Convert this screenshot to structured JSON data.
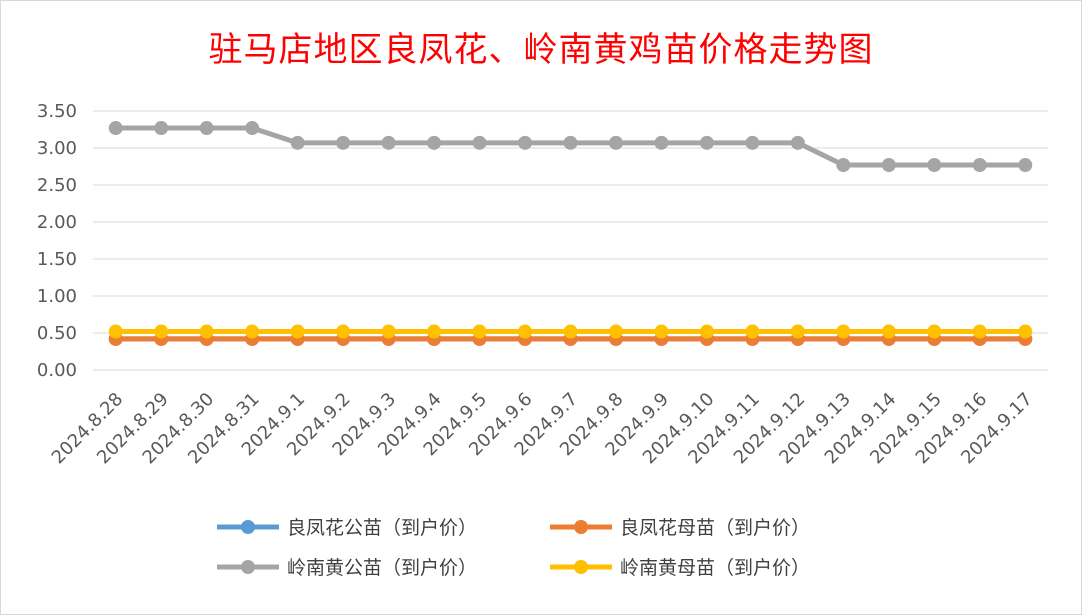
{
  "chart_data": {
    "type": "line",
    "title": "驻马店地区良凤花、岭南黄鸡苗价格走势图",
    "xlabel": "",
    "ylabel": "",
    "ylim": [
      0,
      3.5
    ],
    "yticks": [
      "0.00",
      "0.50",
      "1.00",
      "1.50",
      "2.00",
      "2.50",
      "3.00",
      "3.50"
    ],
    "grid": true,
    "legend_position": "bottom",
    "categories": [
      "2024.8.28",
      "2024.8.29",
      "2024.8.30",
      "2024.8.31",
      "2024.9.1",
      "2024.9.2",
      "2024.9.3",
      "2024.9.4",
      "2024.9.5",
      "2024.9.6",
      "2024.9.7",
      "2024.9.8",
      "2024.9.9",
      "2024.9.10",
      "2024.9.11",
      "2024.9.12",
      "2024.9.13",
      "2024.9.14",
      "2024.9.15",
      "2024.9.16",
      "2024.9.17"
    ],
    "series": [
      {
        "name": "良凤花公苗（到户价）",
        "color": "#5b9bd5",
        "values": [
          0.42,
          0.42,
          0.42,
          0.42,
          0.42,
          0.42,
          0.42,
          0.42,
          0.42,
          0.42,
          0.42,
          0.42,
          0.42,
          0.42,
          0.42,
          0.42,
          0.42,
          0.42,
          0.42,
          0.42,
          0.42
        ]
      },
      {
        "name": "良凤花母苗（到户价）",
        "color": "#ed7d31",
        "values": [
          0.42,
          0.42,
          0.42,
          0.42,
          0.42,
          0.42,
          0.42,
          0.42,
          0.42,
          0.42,
          0.42,
          0.42,
          0.42,
          0.42,
          0.42,
          0.42,
          0.42,
          0.42,
          0.42,
          0.42,
          0.42
        ]
      },
      {
        "name": "岭南黄公苗（到户价）",
        "color": "#a5a5a5",
        "values": [
          3.27,
          3.27,
          3.27,
          3.27,
          3.07,
          3.07,
          3.07,
          3.07,
          3.07,
          3.07,
          3.07,
          3.07,
          3.07,
          3.07,
          3.07,
          3.07,
          2.77,
          2.77,
          2.77,
          2.77,
          2.77
        ]
      },
      {
        "name": "岭南黄母苗（到户价）",
        "color": "#ffc000",
        "values": [
          0.52,
          0.52,
          0.52,
          0.52,
          0.52,
          0.52,
          0.52,
          0.52,
          0.52,
          0.52,
          0.52,
          0.52,
          0.52,
          0.52,
          0.52,
          0.52,
          0.52,
          0.52,
          0.52,
          0.52,
          0.52
        ]
      }
    ]
  }
}
